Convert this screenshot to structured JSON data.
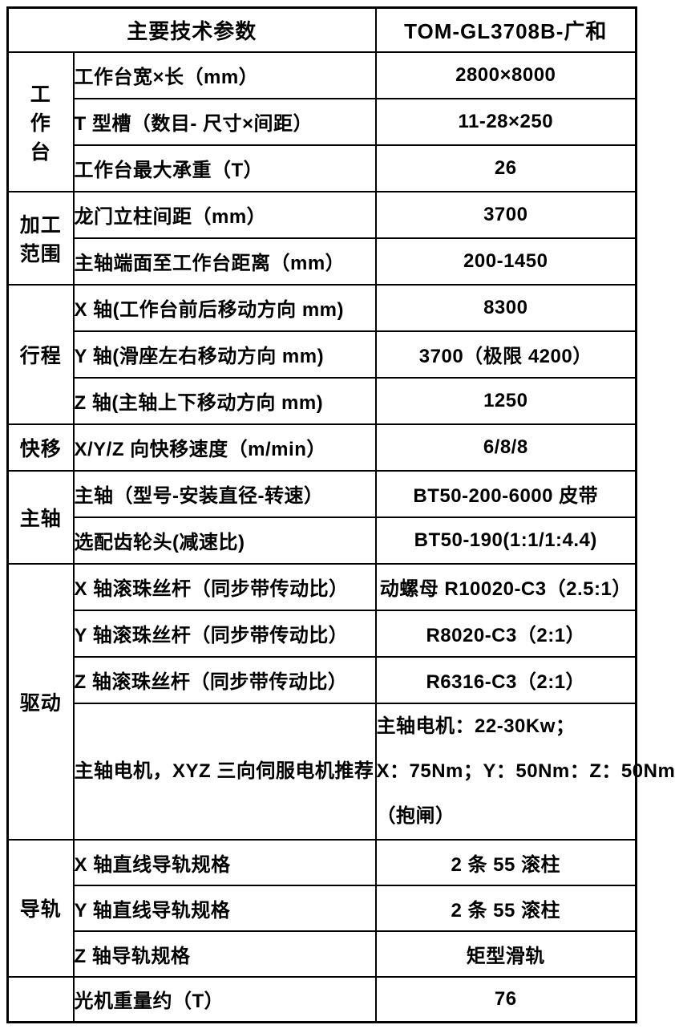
{
  "colors": {
    "background": "#ffffff",
    "border": "#000000",
    "text": "#000000"
  },
  "header": {
    "left": "主要技术参数",
    "right": "TOM-GL3708B-广和"
  },
  "groups": {
    "worktable": {
      "chars": [
        "工",
        "作",
        "台"
      ]
    },
    "range": {
      "lines": [
        "加工",
        "范围"
      ]
    },
    "travel": {
      "label": "行程"
    },
    "rapid": {
      "label": "快移"
    },
    "spindle": {
      "label": "主轴"
    },
    "drive": {
      "label": "驱动"
    },
    "guide": {
      "label": "导轨"
    },
    "last": {
      "label": ""
    }
  },
  "rows": [
    {
      "param": "工作台宽×长（mm）",
      "value": "2800×8000"
    },
    {
      "param": "T 型槽（数目- 尺寸×间距）",
      "value": "11-28×250"
    },
    {
      "param": "工作台最大承重（T）",
      "value": "26"
    },
    {
      "param": "龙门立柱间距（mm）",
      "value": "3700"
    },
    {
      "param": "主轴端面至工作台距离（mm）",
      "value": "200-1450"
    },
    {
      "param": "X 轴(工作台前后移动方向 mm)",
      "value": "8300"
    },
    {
      "param": "Y 轴(滑座左右移动方向 mm)",
      "value": "3700（极限 4200）"
    },
    {
      "param": "Z 轴(主轴上下移动方向 mm)",
      "value": "1250"
    },
    {
      "param": "X/Y/Z 向快移速度（m/min）",
      "value": "6/8/8"
    },
    {
      "param": "主轴（型号-安装直径-转速）",
      "value": "BT50-200-6000 皮带"
    },
    {
      "param": "选配齿轮头(减速比)",
      "value": "BT50-190(1:1/1:4.4)"
    },
    {
      "param": "X 轴滚珠丝杆（同步带传动比）",
      "value": "动螺母 R10020-C3（2.5:1）"
    },
    {
      "param": "Y 轴滚珠丝杆（同步带传动比）",
      "value": "R8020-C3（2:1）"
    },
    {
      "param": "Z 轴滚珠丝杆（同步带传动比）",
      "value": "R6316-C3（2:1）"
    },
    {
      "param": "主轴电机，XYZ 三向伺服电机推荐",
      "value_lines": [
        "主轴电机：22-30Kw；",
        "X：75Nm；Y：50Nm：Z：50Nm",
        "（抱闸）"
      ]
    },
    {
      "param": "X 轴直线导轨规格",
      "value": "2 条 55 滚柱"
    },
    {
      "param": "Y 轴直线导轨规格",
      "value": "2 条 55 滚柱"
    },
    {
      "param": "Z 轴导轨规格",
      "value": "矩型滑轨"
    },
    {
      "param": "光机重量约（T）",
      "value": "76"
    }
  ]
}
